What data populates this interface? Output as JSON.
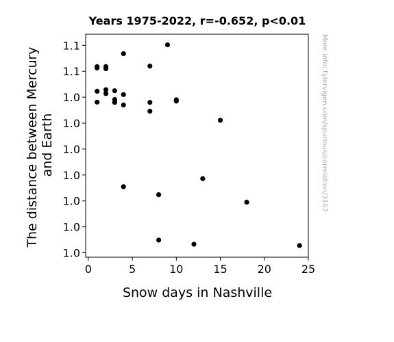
{
  "chart_data": {
    "type": "scatter",
    "title": "Years 1975-2022, r=-0.652, p<0.01",
    "xlabel": "Snow days in Nashville",
    "ylabel_lines": [
      "The distance between Mercury",
      "and Earth"
    ],
    "side_note": "More info: tylervigen.com/spurious/correlation/3167",
    "xlim": [
      -0.3,
      25
    ],
    "ylim": [
      0.0,
      8.6
    ],
    "x_ticks": [
      0,
      5,
      10,
      15,
      20,
      25
    ],
    "y_ticks": [
      {
        "v": 0.17,
        "label": "1.0"
      },
      {
        "v": 1.17,
        "label": "1.0"
      },
      {
        "v": 2.17,
        "label": "1.0"
      },
      {
        "v": 3.17,
        "label": "1.0"
      },
      {
        "v": 4.17,
        "label": "1.0"
      },
      {
        "v": 5.17,
        "label": "1.0"
      },
      {
        "v": 6.17,
        "label": "1.0"
      },
      {
        "v": 7.17,
        "label": "1.1"
      },
      {
        "v": 8.17,
        "label": "1.1"
      }
    ],
    "series": [
      {
        "color": "#000000",
        "points": [
          {
            "x": 1,
            "y": 7.3
          },
          {
            "x": 1,
            "y": 7.35
          },
          {
            "x": 1,
            "y": 6.4
          },
          {
            "x": 1,
            "y": 5.98
          },
          {
            "x": 2,
            "y": 7.35
          },
          {
            "x": 2,
            "y": 7.27
          },
          {
            "x": 2,
            "y": 6.46
          },
          {
            "x": 2,
            "y": 6.31
          },
          {
            "x": 3,
            "y": 6.42
          },
          {
            "x": 3,
            "y": 6.08
          },
          {
            "x": 3,
            "y": 5.97
          },
          {
            "x": 4,
            "y": 7.85
          },
          {
            "x": 4,
            "y": 6.27
          },
          {
            "x": 4,
            "y": 5.87
          },
          {
            "x": 4,
            "y": 2.72
          },
          {
            "x": 7,
            "y": 7.37
          },
          {
            "x": 7,
            "y": 5.97
          },
          {
            "x": 7,
            "y": 5.63
          },
          {
            "x": 8,
            "y": 2.41
          },
          {
            "x": 8,
            "y": 0.66
          },
          {
            "x": 9,
            "y": 8.19
          },
          {
            "x": 10,
            "y": 6.07
          },
          {
            "x": 10,
            "y": 6.02
          },
          {
            "x": 12,
            "y": 0.5
          },
          {
            "x": 13,
            "y": 3.03
          },
          {
            "x": 15,
            "y": 5.28
          },
          {
            "x": 18,
            "y": 2.12
          },
          {
            "x": 24,
            "y": 0.45
          }
        ]
      }
    ]
  }
}
